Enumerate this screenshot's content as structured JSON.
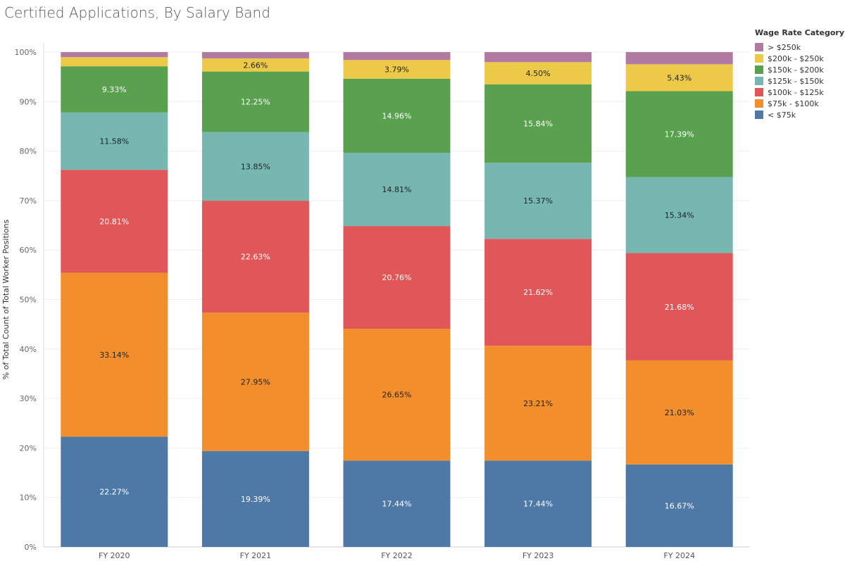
{
  "title": "Certified Applications, By Salary Band",
  "chart_data": {
    "type": "bar",
    "stacked": true,
    "title": "Certified Applications, By Salary Band",
    "xlabel": "",
    "ylabel": "% of Total Count of Total Worker Positions",
    "ylim": [
      0,
      100
    ],
    "yticks": [
      "0%",
      "10%",
      "20%",
      "30%",
      "40%",
      "50%",
      "60%",
      "70%",
      "80%",
      "90%",
      "100%"
    ],
    "categories": [
      "FY 2020",
      "FY 2021",
      "FY 2022",
      "FY 2023",
      "FY 2024"
    ],
    "legend_title": "Wage Rate Category",
    "legend_position": "right",
    "series": [
      {
        "name": "< $75k",
        "color": "#4e79a7",
        "label_color": "#ffffff",
        "values": [
          22.27,
          19.39,
          17.44,
          17.44,
          16.67
        ],
        "labels": [
          "22.27%",
          "19.39%",
          "17.44%",
          "17.44%",
          "16.67%"
        ]
      },
      {
        "name": "$75k - $100k",
        "color": "#f28e2b",
        "label_color": "#222222",
        "values": [
          33.14,
          27.95,
          26.65,
          23.21,
          21.03
        ],
        "labels": [
          "33.14%",
          "27.95%",
          "26.65%",
          "23.21%",
          "21.03%"
        ]
      },
      {
        "name": "$100k - $125k",
        "color": "#e15759",
        "label_color": "#ffffff",
        "values": [
          20.81,
          22.63,
          20.76,
          21.62,
          21.68
        ],
        "labels": [
          "20.81%",
          "22.63%",
          "20.76%",
          "21.62%",
          "21.68%"
        ]
      },
      {
        "name": "$125k - $150k",
        "color": "#76b7b2",
        "label_color": "#222222",
        "values": [
          11.58,
          13.85,
          14.81,
          15.37,
          15.34
        ],
        "labels": [
          "11.58%",
          "13.85%",
          "14.81%",
          "15.37%",
          "15.34%"
        ]
      },
      {
        "name": "$150k - $200k",
        "color": "#59a14f",
        "label_color": "#ffffff",
        "values": [
          9.33,
          12.25,
          14.96,
          15.84,
          17.39
        ],
        "labels": [
          "9.33%",
          "12.25%",
          "14.96%",
          "15.84%",
          "17.39%"
        ]
      },
      {
        "name": "$200k - $250k",
        "color": "#edc948",
        "label_color": "#222222",
        "values": [
          1.85,
          2.66,
          3.79,
          4.5,
          5.43
        ],
        "labels": [
          "",
          "2.66%",
          "3.79%",
          "4.50%",
          "5.43%"
        ]
      },
      {
        "name": "> $250k",
        "color": "#b07aa1",
        "label_color": "#222222",
        "values": [
          1.02,
          1.27,
          1.59,
          2.02,
          2.46
        ],
        "labels": [
          "",
          "",
          "",
          "",
          ""
        ]
      }
    ]
  }
}
